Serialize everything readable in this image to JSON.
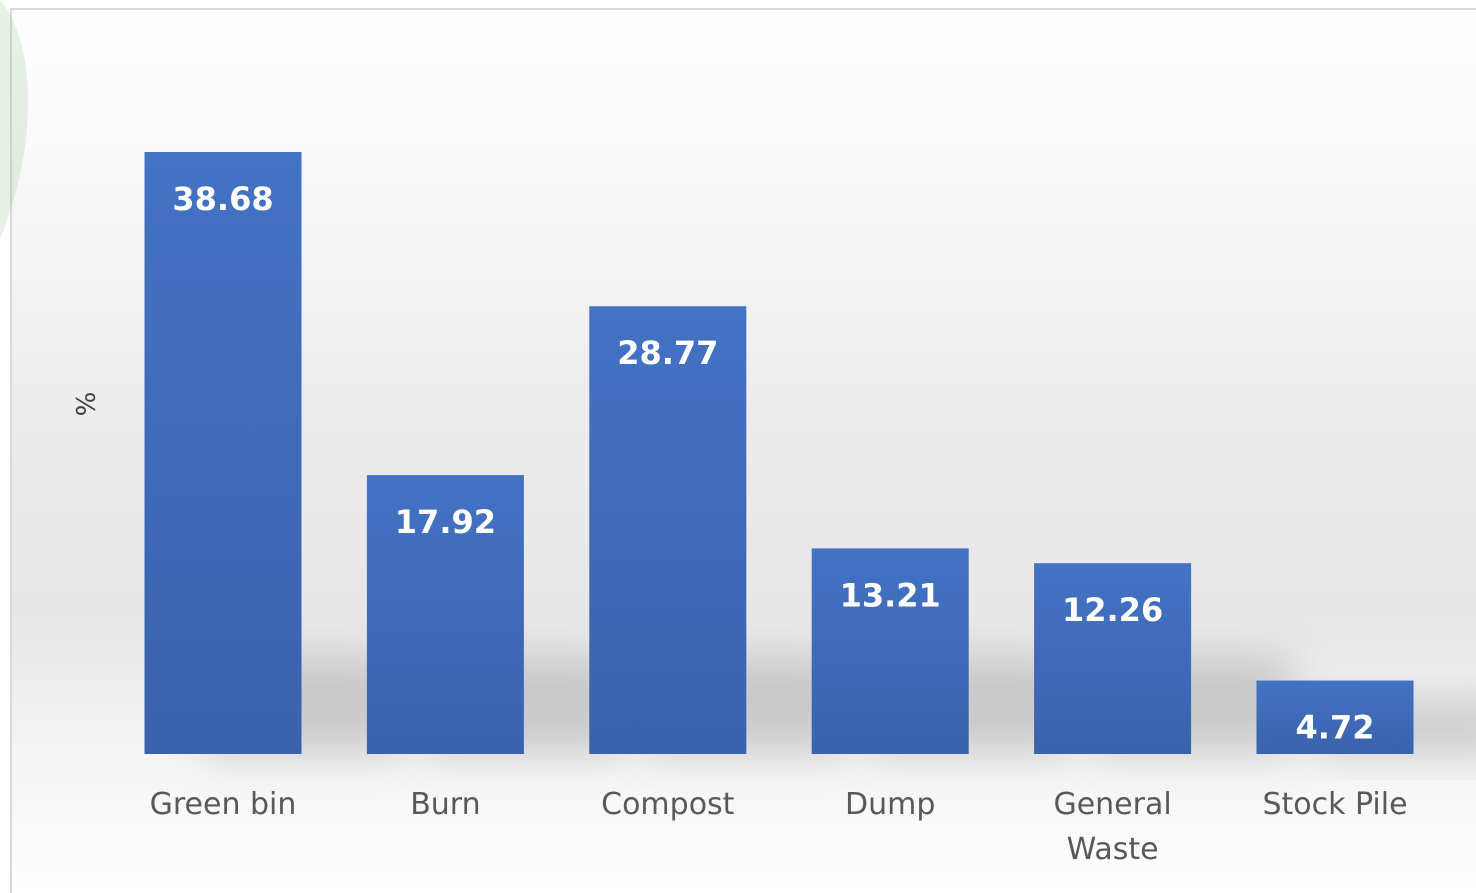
{
  "chart_data": {
    "type": "bar",
    "categories": [
      "Green bin",
      "Burn",
      "Compost",
      "Dump",
      "General Waste",
      "Stock Pile"
    ],
    "category_lines": [
      [
        "Green bin"
      ],
      [
        "Burn"
      ],
      [
        "Compost"
      ],
      [
        "Dump"
      ],
      [
        "General",
        "Waste"
      ],
      [
        "Stock Pile"
      ]
    ],
    "values": [
      38.68,
      17.92,
      28.77,
      13.21,
      12.26,
      4.72
    ],
    "data_labels": [
      "38.68",
      "17.92",
      "28.77",
      "13.21",
      "12.26",
      "4.72"
    ],
    "ylabel": "%",
    "ylim": [
      0,
      40
    ],
    "grid": false,
    "legend": "none",
    "colors": {
      "bar_top": "#4472c4",
      "bar_bottom": "#3a62ad",
      "data_label": "#ffffff",
      "tick_label": "#595959",
      "axis_label": "#404040"
    }
  }
}
